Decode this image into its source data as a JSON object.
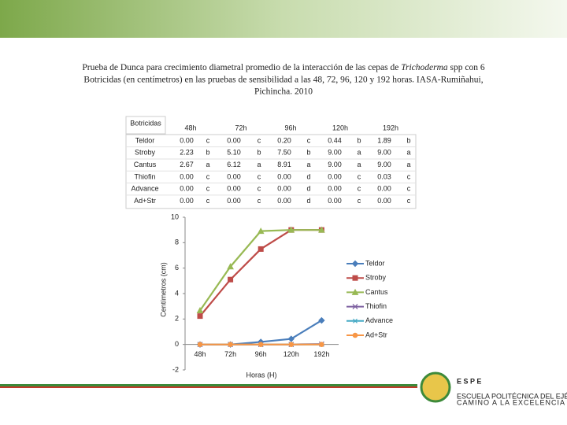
{
  "title": {
    "line1_before": "Prueba de Dunca para crecimiento diametral promedio de la interacción de las cepas de ",
    "line1_italic": "Trichoderma",
    "line1_after": " spp con 6",
    "line2": "Botricidas (en centímetros) en las pruebas de sensibilidad a las 48, 72, 96, 120 y 192 horas. IASA-Rumiñahui,",
    "line3": "Pichincha. 2010"
  },
  "table": {
    "header": [
      "Botricidas",
      "48h",
      "72h",
      "96h",
      "120h",
      "192h"
    ],
    "rows": [
      [
        "Teldor",
        "0.00",
        "c",
        "0.00",
        "c",
        "0.20",
        "c",
        "0.44",
        "b",
        "1.89",
        "b"
      ],
      [
        "Stroby",
        "2.23",
        "b",
        "5.10",
        "b",
        "7.50",
        "b",
        "9.00",
        "a",
        "9.00",
        "a"
      ],
      [
        "Cantus",
        "2.67",
        "a",
        "6.12",
        "a",
        "8.91",
        "a",
        "9.00",
        "a",
        "9.00",
        "a"
      ],
      [
        "Thiofin",
        "0.00",
        "c",
        "0.00",
        "c",
        "0.00",
        "d",
        "0.00",
        "c",
        "0.03",
        "c"
      ],
      [
        "Advance",
        "0.00",
        "c",
        "0.00",
        "c",
        "0.00",
        "d",
        "0.00",
        "c",
        "0.00",
        "c"
      ],
      [
        "Ad+Str",
        "0.00",
        "c",
        "0.00",
        "c",
        "0.00",
        "d",
        "0.00",
        "c",
        "0.00",
        "c"
      ]
    ]
  },
  "chart_data": {
    "type": "line",
    "y_label": "Centímetros (cm)",
    "x_label": "Horas (H)",
    "categories": [
      "48h",
      "72h",
      "96h",
      "120h",
      "192h"
    ],
    "ylim": [
      -2,
      10
    ],
    "yticks": [
      -2,
      0,
      2,
      4,
      6,
      8,
      10
    ],
    "series": [
      {
        "name": "Teldor",
        "color": "#4a7ebb",
        "marker": "diamond",
        "values": [
          0,
          0,
          0.2,
          0.44,
          1.89
        ]
      },
      {
        "name": "Stroby",
        "color": "#be4b48",
        "marker": "square",
        "values": [
          2.23,
          5.1,
          7.5,
          9,
          9
        ]
      },
      {
        "name": "Cantus",
        "color": "#98b954",
        "marker": "triangle",
        "values": [
          2.67,
          6.12,
          8.91,
          9,
          9
        ]
      },
      {
        "name": "Thiofin",
        "color": "#7d60a0",
        "marker": "x",
        "values": [
          0,
          0,
          0,
          0,
          0.03
        ]
      },
      {
        "name": "Advance",
        "color": "#46aac5",
        "marker": "star",
        "values": [
          0,
          0,
          0,
          0,
          0
        ]
      },
      {
        "name": "Ad+Str",
        "color": "#f79646",
        "marker": "circle",
        "values": [
          0,
          0,
          0,
          0,
          0
        ]
      }
    ]
  },
  "logo": {
    "name": "E S P E",
    "subtitle": "ESCUELA POLITÉCNICA DEL EJÉRCITO",
    "motto": "CAMINO A LA EXCELENCIA"
  }
}
